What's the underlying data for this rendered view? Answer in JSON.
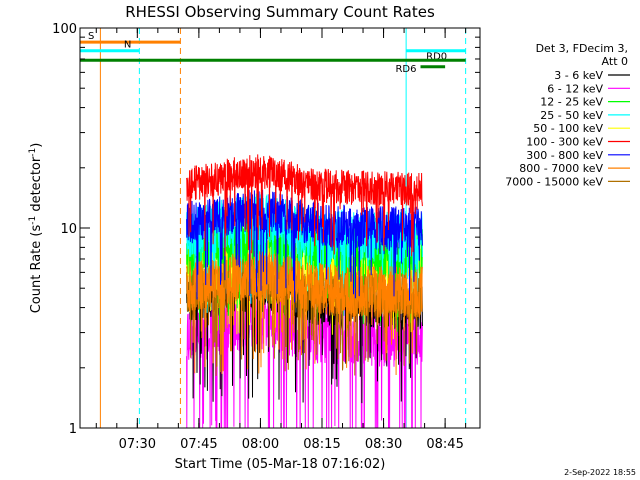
{
  "chart_data": {
    "type": "line",
    "title": "RHESSI Observing Summary Count Rates",
    "xlabel": "Start Time (05-Mar-18 07:16:02)",
    "ylabel_main": "Count Rate (s",
    "ylabel_sup1": "-1",
    "ylabel_mid": " detector",
    "ylabel_sup2": "-1",
    "ylabel_end": ")",
    "y_scale": "log",
    "ylim": [
      1,
      100
    ],
    "xlim": [
      "07:16:02",
      "08:53:30"
    ],
    "x_ticks": [
      "07:30",
      "07:45",
      "08:00",
      "08:15",
      "08:30",
      "08:45"
    ],
    "y_ticks": [
      "1",
      "10",
      "100"
    ],
    "footer_date": "2-Sep-2022 18:55",
    "legend": {
      "placement": "right",
      "header": [
        "Det 3, FDecim 3,",
        "Att 0"
      ],
      "entries": [
        {
          "label": "3 - 6 keV",
          "color": "#000000"
        },
        {
          "label": "6 - 12 keV",
          "color": "#ff00ff"
        },
        {
          "label": "12 - 25 keV",
          "color": "#00ff00"
        },
        {
          "label": "25 - 50 keV",
          "color": "#00ffff"
        },
        {
          "label": "50 - 100 keV",
          "color": "#ffff00"
        },
        {
          "label": "100 - 300 keV",
          "color": "#ff0000"
        },
        {
          "label": "300 - 800 keV",
          "color": "#0000ff"
        },
        {
          "label": "800 - 7000 keV",
          "color": "#ff8000"
        },
        {
          "label": "7000 - 15000 keV",
          "color": "#b07000"
        }
      ]
    },
    "data_span": [
      "07:42:00",
      "08:39:30"
    ],
    "series": [
      {
        "band": "6 - 12 keV",
        "color": "#ff00ff",
        "base": 3.0,
        "spread": 0.35,
        "drop_min": 1.0
      },
      {
        "band": "3 - 6 keV",
        "color": "#000000",
        "base": 4.2,
        "spread": 0.25,
        "drop_min": 2.2
      },
      {
        "band": "50 - 100 keV",
        "color": "#ffff00",
        "base": 6.5,
        "spread": 0.25,
        "drop_min": 4.5
      },
      {
        "band": "12 - 25 keV",
        "color": "#00ff00",
        "base": 8.0,
        "spread": 0.35,
        "drop_min": 5.0
      },
      {
        "band": "25 - 50 keV",
        "color": "#00ffff",
        "base": 9.5,
        "spread": 0.3,
        "drop_min": 6.0
      },
      {
        "band": "7000 - 15000 keV",
        "color": "#b07000",
        "base": 4.8,
        "spread": 0.25,
        "drop_min": 3.0
      },
      {
        "band": "800 - 7000 keV",
        "color": "#ff8000",
        "base": 5.0,
        "spread": 0.3,
        "drop_min": 3.0
      },
      {
        "band": "300 - 800 keV",
        "color": "#0000ff",
        "base": 10.5,
        "spread": 0.25,
        "drop_min": 7.0
      },
      {
        "band": "100 - 300 keV",
        "color": "#ff0000",
        "base": 16.5,
        "spread": 0.2,
        "drop_min": 12.0
      }
    ],
    "markers": {
      "vertical_lines": [
        {
          "time": "07:21:00",
          "color": "#ff8000",
          "style": "solid"
        },
        {
          "time": "07:30:30",
          "color": "#00ffff",
          "style": "dashed"
        },
        {
          "time": "07:40:30",
          "color": "#ff8000",
          "style": "dashed"
        },
        {
          "time": "08:35:30",
          "color": "#00ffff",
          "style": "solid"
        },
        {
          "time": "08:50:00",
          "color": "#00ffff",
          "style": "dashed"
        }
      ],
      "bars": [
        {
          "label": "S",
          "from": "07:16:02",
          "to": "07:40:30",
          "value": 85,
          "color": "#ff8000"
        },
        {
          "label": "N",
          "from": "07:16:02",
          "to": "07:30:30",
          "value": 77,
          "color": "#00ffff"
        },
        {
          "label": "RD0",
          "from": "08:35:30",
          "to": "08:50:00",
          "value": 77,
          "color": "#00ffff"
        },
        {
          "label": "",
          "from": "07:16:02",
          "to": "08:50:00",
          "value": 69,
          "color": "#008000"
        },
        {
          "label": "RD6",
          "from": "08:39:00",
          "to": "08:45:00",
          "value": 64,
          "color": "#008000"
        }
      ]
    }
  }
}
